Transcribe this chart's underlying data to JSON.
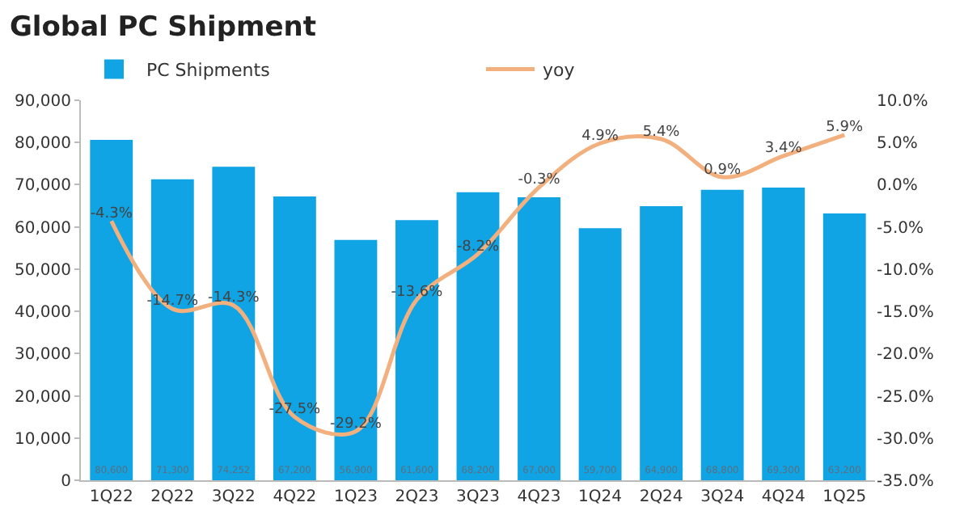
{
  "chart_data": {
    "type": "bar",
    "title": "Global PC Shipment",
    "categories": [
      "1Q22",
      "2Q22",
      "3Q22",
      "4Q22",
      "1Q23",
      "2Q23",
      "3Q23",
      "4Q23",
      "1Q24",
      "2Q24",
      "3Q24",
      "4Q24",
      "1Q25"
    ],
    "series": [
      {
        "name": "PC Shipments",
        "color": "#10a4e4",
        "values": [
          80600,
          71300,
          74252,
          67200,
          56900,
          61600,
          68200,
          67000,
          59700,
          64900,
          68800,
          69300,
          63200
        ],
        "value_labels": [
          "80,600",
          "71,300",
          "74,252",
          "67,200",
          "56,900",
          "61,600",
          "68,200",
          "67,000",
          "59,700",
          "64,900",
          "68,800",
          "69,300",
          "63,200"
        ]
      },
      {
        "name": "yoy",
        "type": "line",
        "axis": "y2",
        "color": "#f2b07e",
        "values": [
          -4.3,
          -14.7,
          -14.3,
          -27.5,
          -29.2,
          -13.6,
          -8.2,
          -0.3,
          4.9,
          5.4,
          0.9,
          3.4,
          5.9
        ],
        "value_labels": [
          "-4.3%",
          "-14.7%",
          "-14.3%",
          "-27.5%",
          "-29.2%",
          "-13.6%",
          "-8.2%",
          "-0.3%",
          "4.9%",
          "5.4%",
          "0.9%",
          "3.4%",
          "5.9%"
        ]
      }
    ],
    "ylim": [
      0,
      90000
    ],
    "yticks": [
      0,
      {
        "value": 10000,
        "label": "10,000"
      },
      {
        "value": 20000,
        "label": "20,000"
      },
      {
        "value": 30000,
        "label": "30,000"
      },
      {
        "value": 40000,
        "label": "40,000"
      },
      {
        "value": 50000,
        "label": "50,000"
      },
      {
        "value": 60000,
        "label": "60,000"
      },
      {
        "value": 70000,
        "label": "70,000"
      },
      {
        "value": 80000,
        "label": "80,000"
      },
      {
        "value": 90000,
        "label": "90,000"
      }
    ],
    "y2lim": [
      -35,
      10
    ],
    "y2ticks": [
      {
        "value": -35,
        "label": "-35.0%"
      },
      {
        "value": -30,
        "label": "-30.0%"
      },
      {
        "value": -25,
        "label": "-25.0%"
      },
      {
        "value": -20,
        "label": "-20.0%"
      },
      {
        "value": -15,
        "label": "-15.0%"
      },
      {
        "value": -10,
        "label": "-10.0%"
      },
      {
        "value": -5,
        "label": "-5.0%"
      },
      {
        "value": 0,
        "label": "0.0%"
      },
      {
        "value": 5,
        "label": "5.0%"
      },
      {
        "value": 10,
        "label": "10.0%"
      }
    ],
    "grid": false,
    "legend": "top",
    "marker": "none",
    "line_style": "solid"
  }
}
